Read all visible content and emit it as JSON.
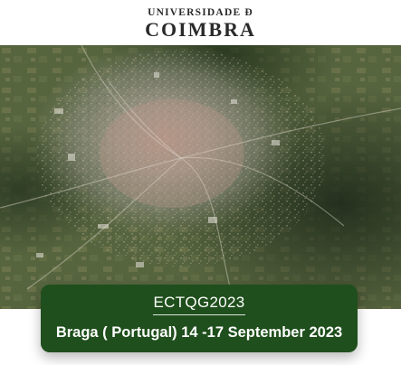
{
  "header": {
    "logo_line1": "UNIVERSIDADE Ð",
    "logo_line2": "COIMBRA"
  },
  "hero": {
    "image_icon": "satellite-city-image"
  },
  "event": {
    "title": "ECTQG2023",
    "details": "Braga ( Portugal) 14 -17 September 2023"
  },
  "colors": {
    "card_background": "#1f4f1c",
    "card_text": "#ffffff",
    "logo_text": "#2a2a2a"
  }
}
